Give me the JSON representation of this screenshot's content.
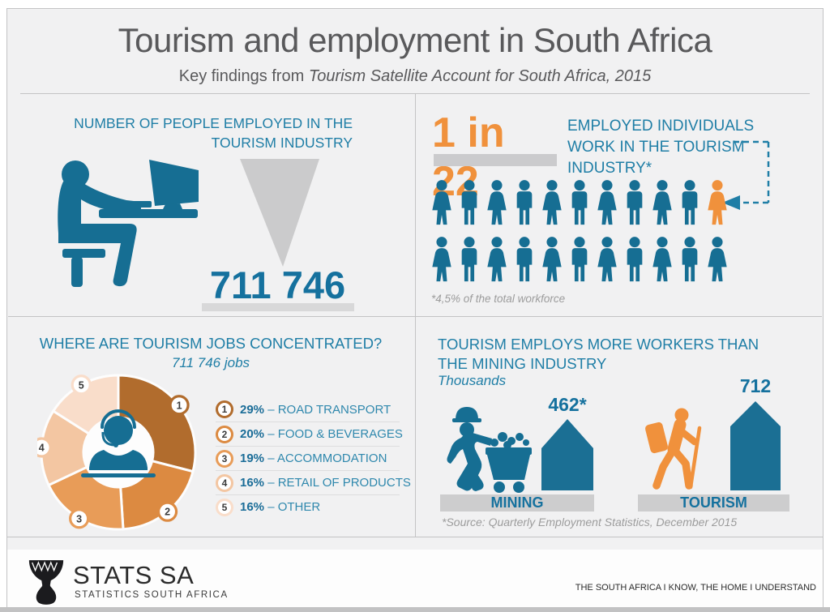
{
  "header": {
    "title": "Tourism and employment in South Africa",
    "subtitle_prefix": "Key findings from ",
    "subtitle_italic": "Tourism Satellite Account for South Africa, 2015"
  },
  "panels": {
    "employment": {
      "heading_lines": [
        "NUMBER OF PEOPLE EMPLOYED IN THE",
        "TOURISM INDUSTRY"
      ],
      "value": "711 746"
    },
    "ratio": {
      "stat": "1 in 22",
      "heading_lines": [
        "EMPLOYED INDIVIDUALS",
        "WORK IN THE TOURISM",
        "INDUSTRY*"
      ],
      "footnote": "*4,5% of the total workforce",
      "people_rows": 2,
      "people_per_row": 11,
      "highlighted_person_index": 10
    },
    "concentration": {
      "heading": "WHERE ARE TOURISM JOBS CONCENTRATED?",
      "subheading": "711 746 jobs",
      "legend_separator": " – "
    },
    "mining_comparison": {
      "heading_lines": [
        "TOURISM EMPLOYS MORE WORKERS THAN",
        "THE MINING INDUSTRY"
      ],
      "unit_label": "Thousands"
    }
  },
  "chart_data": [
    {
      "type": "pie",
      "subtype": "donut",
      "title": "WHERE ARE TOURISM JOBS CONCENTRATED?",
      "subtitle": "711 746 jobs",
      "categories": [
        "ROAD TRANSPORT",
        "FOOD & BEVERAGES",
        "ACCOMMODATION",
        "RETAIL OF PRODUCTS",
        "OTHER"
      ],
      "values": [
        29,
        20,
        19,
        16,
        16
      ],
      "unit": "%",
      "colors": [
        "#b16c2d",
        "#dc8a41",
        "#e89c58",
        "#f3c6a2",
        "#f9ddca"
      ],
      "legend_position": "right",
      "center_icon": "call-centre-agent-icon"
    },
    {
      "type": "bar",
      "title": "TOURISM EMPLOYS MORE WORKERS THAN THE MINING INDUSTRY",
      "ylabel": "Thousands",
      "categories": [
        "MINING",
        "TOURISM"
      ],
      "values": [
        462,
        712
      ],
      "value_labels": [
        "462*",
        "712"
      ],
      "source": "*Source: Quarterly Employment Statistics, December 2015"
    },
    {
      "type": "pictograph",
      "title": "1 in 22 employed individuals work in the tourism industry",
      "total_icons": 22,
      "highlighted_icons": 1,
      "footnote": "*4,5% of the total workforce"
    }
  ],
  "footer": {
    "logo_title": "STATS SA",
    "logo_subtitle": "STATISTICS SOUTH AFRICA",
    "slogan": "THE SOUTH AFRICA I KNOW, THE HOME I UNDERSTAND"
  },
  "colors": {
    "teal": "#166e93",
    "teal_text": "#1f7ea6",
    "orange": "#f0913c",
    "gray_shape": "#cbcbcd",
    "background": "#f1f1f2",
    "footnote_gray": "#9c9c9c",
    "title_gray": "#59595b"
  }
}
